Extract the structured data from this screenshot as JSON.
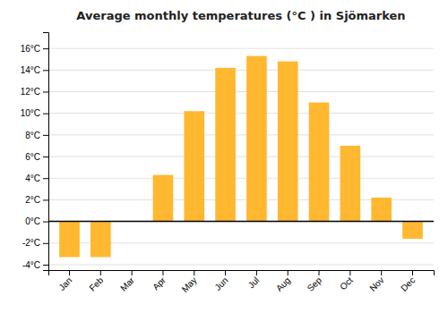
{
  "chart_data": {
    "type": "bar",
    "title": "Average monthly temperatures (°C ) in Sjömarken",
    "categories": [
      "Jan",
      "Feb",
      "Mar",
      "Apr",
      "May",
      "Jun",
      "Jul",
      "Aug",
      "Sep",
      "Oct",
      "Nov",
      "Dec"
    ],
    "values": [
      -3.3,
      -3.3,
      0.0,
      4.3,
      10.2,
      14.2,
      15.3,
      14.8,
      11.0,
      7.0,
      2.2,
      -1.6
    ],
    "color": "#FFB830",
    "ylim": [
      -4.5,
      17.5
    ],
    "yticks": [
      {
        "value": -4,
        "label": "-4°C"
      },
      {
        "value": -2,
        "label": "-2°C"
      },
      {
        "value": 0,
        "label": "0°C"
      },
      {
        "value": 2,
        "label": "2°C"
      },
      {
        "value": 4,
        "label": "4°C"
      },
      {
        "value": 6,
        "label": "6°C"
      },
      {
        "value": 8,
        "label": "8°C"
      },
      {
        "value": 10,
        "label": "10°C"
      },
      {
        "value": 12,
        "label": "12°C"
      },
      {
        "value": 14,
        "label": "14°C"
      },
      {
        "value": 16,
        "label": "16°C"
      }
    ],
    "grid": true
  }
}
